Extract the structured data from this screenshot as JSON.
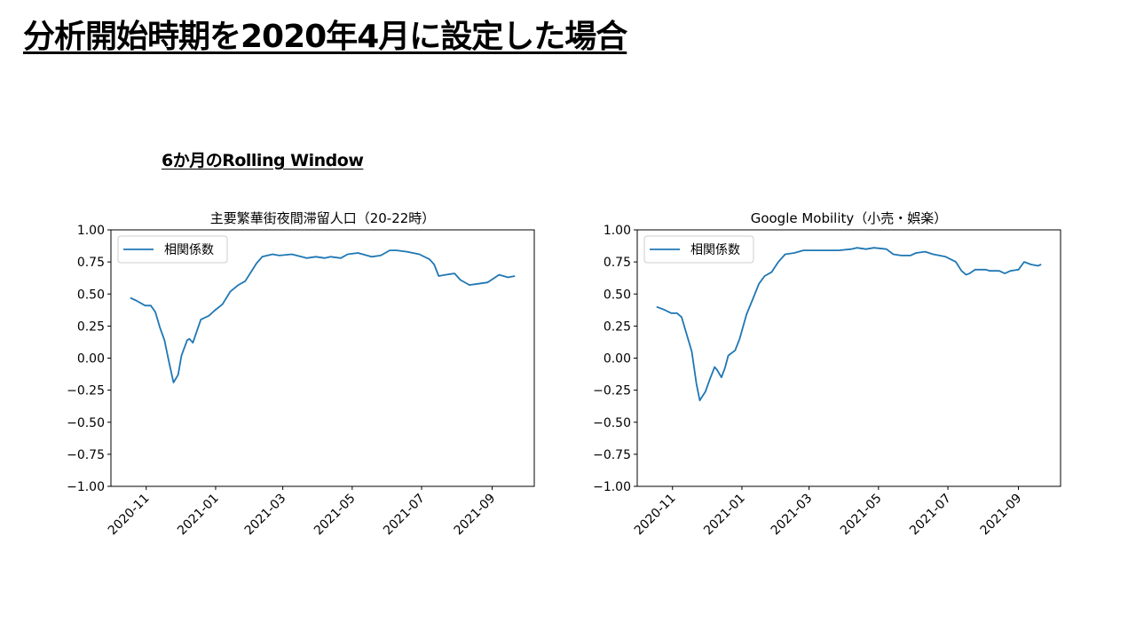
{
  "slide": {
    "title": "分析開始時期を2020年4月に設定した場合",
    "subtitle": "6か月のRolling Window"
  },
  "colors": {
    "line": "#1f77b4",
    "axis": "#000000"
  },
  "chart_data": [
    {
      "type": "line",
      "title": "主要繁華街夜間滞留人口（20-22時）",
      "xlabel": "",
      "ylabel": "",
      "ylim": [
        -1.0,
        1.0
      ],
      "yticks": [
        "1.00",
        "0.75",
        "0.50",
        "0.25",
        "0.00",
        "−0.25",
        "−0.50",
        "−0.75",
        "−1.00"
      ],
      "ytick_values": [
        1,
        0.75,
        0.5,
        0.25,
        0,
        -0.25,
        -0.5,
        -0.75,
        -1
      ],
      "xticks": [
        "2020-11",
        "2021-01",
        "2021-03",
        "2021-05",
        "2021-07",
        "2021-09"
      ],
      "xtick_days": [
        31,
        92,
        151,
        212,
        273,
        335
      ],
      "x_origin_date": "2020-10-01",
      "xlim_days": [
        0,
        372
      ],
      "grid": false,
      "legend": {
        "position": "top-left",
        "entries": [
          "相関係数"
        ]
      },
      "series": [
        {
          "name": "相関係数",
          "x_days": [
            17,
            22,
            30,
            35,
            39,
            43,
            47,
            51,
            55,
            59,
            62,
            67,
            69,
            72,
            79,
            86,
            91,
            98,
            105,
            112,
            118,
            128,
            133,
            142,
            148,
            159,
            172,
            180,
            188,
            193,
            202,
            208,
            217,
            229,
            237,
            245,
            251,
            260,
            271,
            280,
            284,
            288,
            294,
            302,
            307,
            315,
            323,
            331,
            341,
            349,
            355
          ],
          "values": [
            0.47,
            0.45,
            0.41,
            0.41,
            0.36,
            0.24,
            0.14,
            -0.03,
            -0.19,
            -0.13,
            0.02,
            0.14,
            0.15,
            0.12,
            0.3,
            0.33,
            0.37,
            0.42,
            0.52,
            0.57,
            0.6,
            0.74,
            0.79,
            0.81,
            0.8,
            0.81,
            0.78,
            0.79,
            0.78,
            0.79,
            0.78,
            0.81,
            0.82,
            0.79,
            0.8,
            0.84,
            0.84,
            0.83,
            0.81,
            0.77,
            0.73,
            0.64,
            0.65,
            0.66,
            0.61,
            0.57,
            0.58,
            0.59,
            0.65,
            0.63,
            0.64
          ]
        }
      ]
    },
    {
      "type": "line",
      "title": "Google Mobility（小売・娯楽）",
      "xlabel": "",
      "ylabel": "",
      "ylim": [
        -1.0,
        1.0
      ],
      "yticks": [
        "1.00",
        "0.75",
        "0.50",
        "0.25",
        "0.00",
        "−0.25",
        "−0.50",
        "−0.75",
        "−1.00"
      ],
      "ytick_values": [
        1,
        0.75,
        0.5,
        0.25,
        0,
        -0.25,
        -0.5,
        -0.75,
        -1
      ],
      "xticks": [
        "2020-11",
        "2021-01",
        "2021-03",
        "2021-05",
        "2021-07",
        "2021-09"
      ],
      "xtick_days": [
        31,
        92,
        151,
        212,
        273,
        335
      ],
      "x_origin_date": "2020-10-01",
      "xlim_days": [
        0,
        372
      ],
      "grid": false,
      "legend": {
        "position": "top-left",
        "entries": [
          "相関係数"
        ]
      },
      "series": [
        {
          "name": "相関係数",
          "x_days": [
            17,
            23,
            30,
            35,
            39,
            43,
            48,
            52,
            55,
            60,
            64,
            68,
            70,
            74,
            77,
            80,
            86,
            90,
            96,
            102,
            107,
            112,
            118,
            124,
            130,
            138,
            146,
            161,
            177,
            188,
            193,
            201,
            208,
            219,
            225,
            232,
            240,
            245,
            253,
            260,
            271,
            280,
            285,
            289,
            292,
            297,
            306,
            310,
            318,
            323,
            328,
            335,
            340,
            346,
            352,
            355
          ],
          "values": [
            0.4,
            0.38,
            0.35,
            0.35,
            0.32,
            0.2,
            0.05,
            -0.2,
            -0.33,
            -0.26,
            -0.16,
            -0.07,
            -0.09,
            -0.15,
            -0.08,
            0.02,
            0.06,
            0.15,
            0.34,
            0.47,
            0.58,
            0.64,
            0.67,
            0.75,
            0.81,
            0.82,
            0.84,
            0.84,
            0.84,
            0.85,
            0.86,
            0.85,
            0.86,
            0.85,
            0.81,
            0.8,
            0.8,
            0.82,
            0.83,
            0.81,
            0.79,
            0.75,
            0.68,
            0.65,
            0.66,
            0.69,
            0.69,
            0.68,
            0.68,
            0.66,
            0.68,
            0.69,
            0.75,
            0.73,
            0.72,
            0.73
          ]
        }
      ]
    }
  ]
}
